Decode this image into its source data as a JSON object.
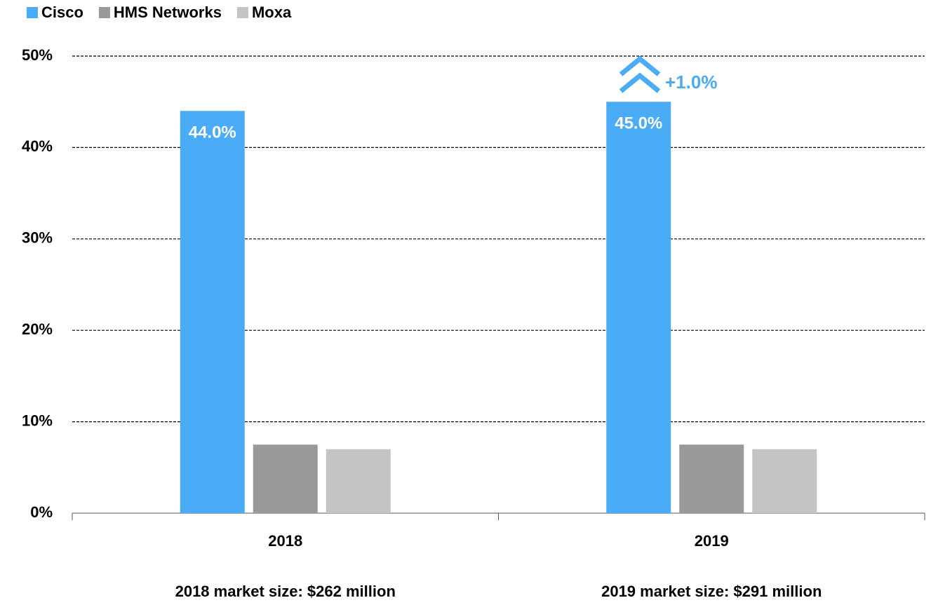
{
  "chart_data": {
    "type": "bar",
    "categories": [
      "2018",
      "2019"
    ],
    "series": [
      {
        "name": "Cisco",
        "color": "#4aabf7",
        "values": [
          44.0,
          45.0
        ],
        "value_labels": [
          "44.0%",
          "45.0%"
        ]
      },
      {
        "name": "HMS Networks",
        "color": "#999999",
        "values": [
          7.5,
          7.5
        ]
      },
      {
        "name": "Moxa",
        "color": "#c4c4c4",
        "values": [
          7.0,
          7.0
        ]
      }
    ],
    "ylim": [
      0,
      50
    ],
    "yticks": [
      {
        "value": 0,
        "label": "0%"
      },
      {
        "value": 10,
        "label": "10%"
      },
      {
        "value": 20,
        "label": "20%"
      },
      {
        "value": 30,
        "label": "30%"
      },
      {
        "value": 40,
        "label": "40%"
      },
      {
        "value": 50,
        "label": "50%"
      }
    ],
    "grid": true,
    "legend": "top-left",
    "annotation": "+1.0%",
    "footnotes": [
      "2018 market size: $262 million",
      "2019 market size: $291 million"
    ]
  }
}
